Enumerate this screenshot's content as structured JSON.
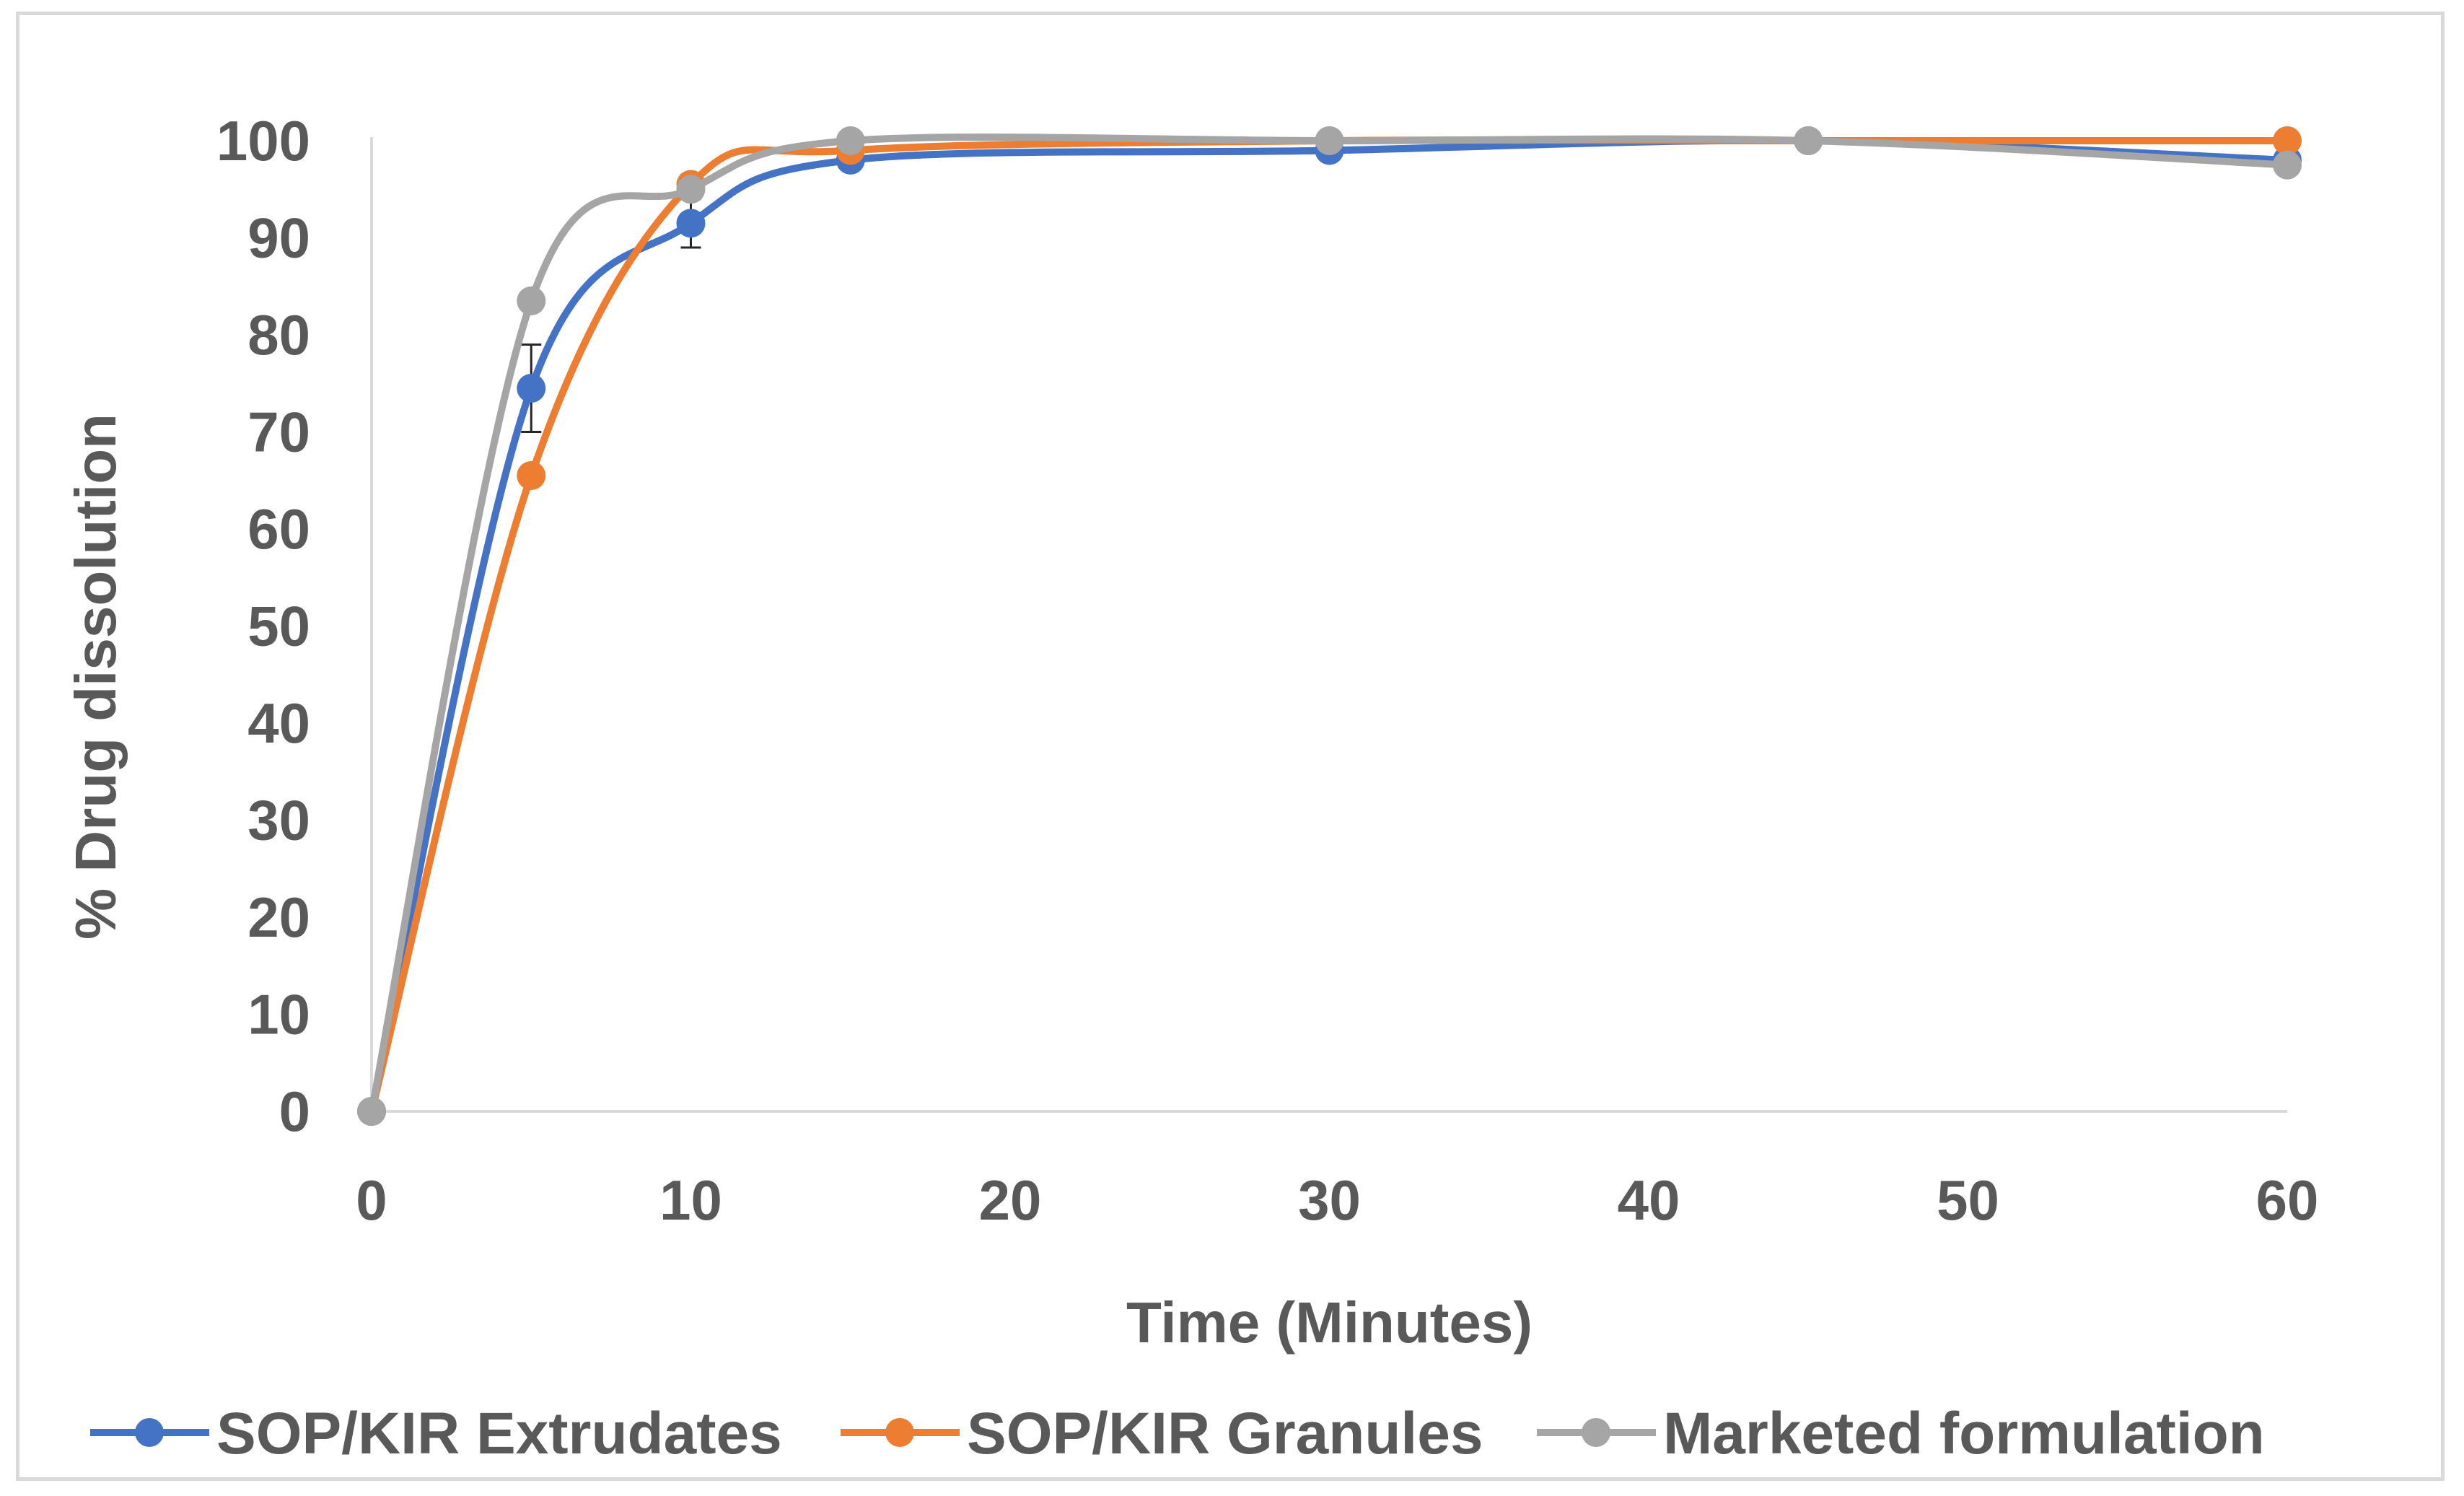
{
  "chart_data": {
    "type": "line",
    "smooth": true,
    "title": "",
    "xlabel": "Time (Minutes)",
    "ylabel": "% Drug dissolution",
    "xlim": [
      0,
      60
    ],
    "ylim": [
      0,
      100
    ],
    "x_ticks": [
      0,
      10,
      20,
      30,
      40,
      50,
      60
    ],
    "y_ticks": [
      0,
      10,
      20,
      30,
      40,
      50,
      60,
      70,
      80,
      90,
      100
    ],
    "x": [
      0,
      5,
      10,
      15,
      30,
      45,
      60
    ],
    "grid": false,
    "legend_position": "bottom",
    "series": [
      {
        "name": "SOP/KIR Extrudates",
        "color": "#4472c4",
        "values": [
          0,
          74.5,
          91.5,
          98,
          99,
          100,
          98
        ],
        "error": [
          0,
          4.5,
          2.5,
          0.5,
          0.5,
          0,
          0.5
        ]
      },
      {
        "name": "SOP/KIR Granules",
        "color": "#ed7d31",
        "values": [
          0,
          65.5,
          95.5,
          99,
          100,
          100,
          100
        ],
        "error": [
          0,
          0,
          1,
          0.3,
          0.3,
          0,
          0
        ]
      },
      {
        "name": "Marketed formulation",
        "color": "#a5a5a5",
        "values": [
          0,
          83.5,
          95,
          100,
          100,
          100,
          97.5
        ],
        "error": [
          0,
          0,
          1,
          0,
          0,
          0,
          0
        ]
      }
    ]
  }
}
